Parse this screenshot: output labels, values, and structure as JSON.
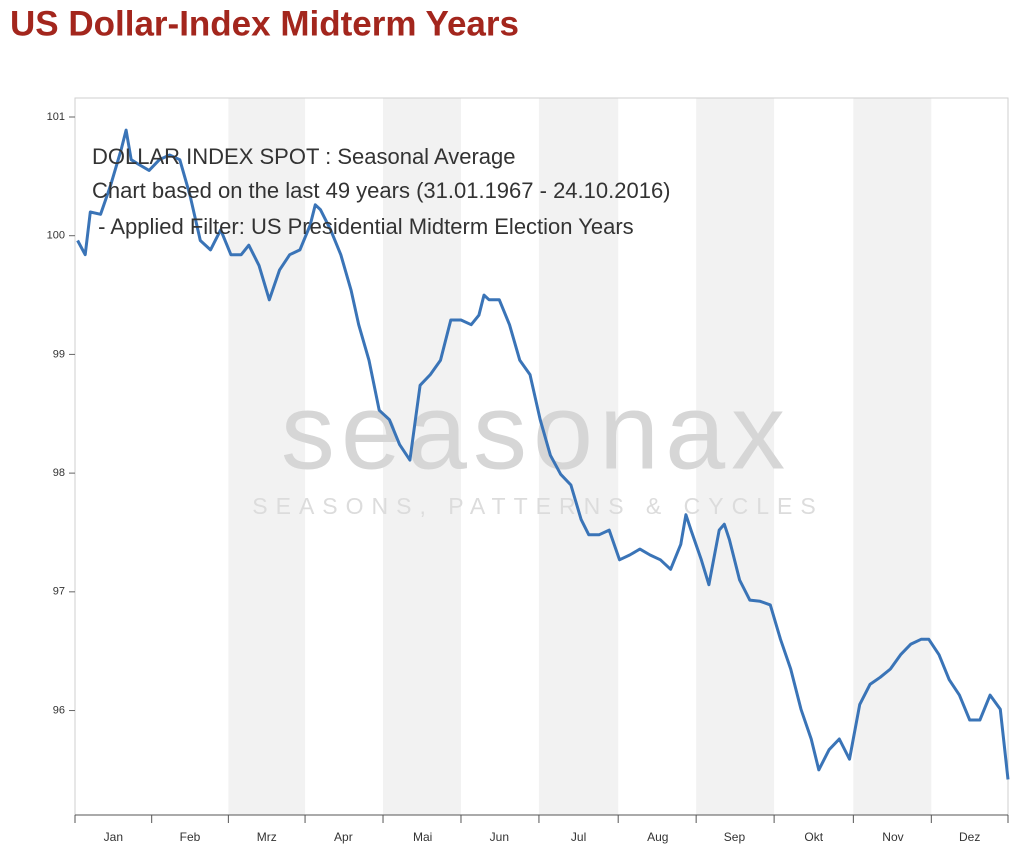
{
  "chart_data": {
    "type": "line",
    "title": "US Dollar-Index Midterm Years",
    "annotations": [
      "DOLLAR INDEX SPOT : Seasonal Average",
      "Chart based on the last 49 years (31.01.1967 - 24.10.2016)",
      " - Applied Filter: US Presidential Midterm Election Years"
    ],
    "watermark": [
      "seasonax",
      "SEASONS, PATTERNS & CYCLES"
    ],
    "x": [
      1,
      4,
      6,
      10,
      14,
      18,
      20,
      22,
      25,
      29,
      33,
      37,
      41,
      45,
      49,
      53,
      57,
      61,
      65,
      68,
      72,
      76,
      80,
      84,
      88,
      92,
      94,
      96,
      100,
      104,
      108,
      111,
      115,
      119,
      123,
      127,
      131,
      135,
      139,
      143,
      147,
      151,
      155,
      158,
      160,
      162,
      166,
      170,
      174,
      178,
      182,
      186,
      190,
      194,
      198,
      201,
      205,
      209,
      213,
      217,
      221,
      225,
      229,
      233,
      237,
      239,
      241,
      245,
      248,
      252,
      254,
      256,
      260,
      264,
      268,
      272,
      276,
      280,
      284,
      288,
      291,
      295,
      299,
      303,
      307,
      311,
      315,
      319,
      323,
      327,
      331,
      334,
      338,
      342,
      346,
      350,
      354,
      358,
      362,
      365
    ],
    "series": [
      {
        "name": "DOLLAR INDEX SPOT",
        "color": "#3a74b7",
        "values": [
          99.96,
          99.84,
          100.2,
          100.18,
          100.43,
          100.72,
          100.89,
          100.64,
          100.6,
          100.55,
          100.64,
          100.68,
          100.64,
          100.34,
          99.96,
          99.88,
          100.05,
          99.84,
          99.84,
          99.92,
          99.75,
          99.46,
          99.71,
          99.84,
          99.88,
          100.09,
          100.26,
          100.22,
          100.05,
          99.84,
          99.54,
          99.25,
          98.95,
          98.53,
          98.45,
          98.24,
          98.11,
          98.74,
          98.83,
          98.95,
          99.29,
          99.29,
          99.25,
          99.33,
          99.5,
          99.46,
          99.46,
          99.25,
          98.95,
          98.83,
          98.45,
          98.15,
          97.99,
          97.9,
          97.61,
          97.48,
          97.48,
          97.52,
          97.27,
          97.31,
          97.36,
          97.31,
          97.27,
          97.19,
          97.4,
          97.65,
          97.52,
          97.27,
          97.06,
          97.52,
          97.57,
          97.44,
          97.1,
          96.93,
          96.92,
          96.89,
          96.6,
          96.35,
          96.01,
          95.76,
          95.5,
          95.67,
          95.76,
          95.59,
          96.05,
          96.22,
          96.28,
          96.35,
          96.47,
          96.56,
          96.6,
          96.6,
          96.47,
          96.26,
          96.13,
          95.92,
          95.92,
          96.13,
          96.01,
          95.42
        ]
      }
    ],
    "xlim": [
      0,
      365
    ],
    "xticks": [
      {
        "value": 15,
        "label": "Jan"
      },
      {
        "value": 45,
        "label": "Feb"
      },
      {
        "value": 75,
        "label": "Mrz"
      },
      {
        "value": 105,
        "label": "Apr"
      },
      {
        "value": 136,
        "label": "Mai"
      },
      {
        "value": 166,
        "label": "Jun"
      },
      {
        "value": 197,
        "label": "Jul"
      },
      {
        "value": 228,
        "label": "Aug"
      },
      {
        "value": 258,
        "label": "Sep"
      },
      {
        "value": 289,
        "label": "Okt"
      },
      {
        "value": 320,
        "label": "Nov"
      },
      {
        "value": 350,
        "label": "Dez"
      }
    ],
    "ylim": [
      95.12,
      101.16
    ],
    "yticks": [
      96,
      97,
      98,
      99,
      100,
      101
    ]
  }
}
